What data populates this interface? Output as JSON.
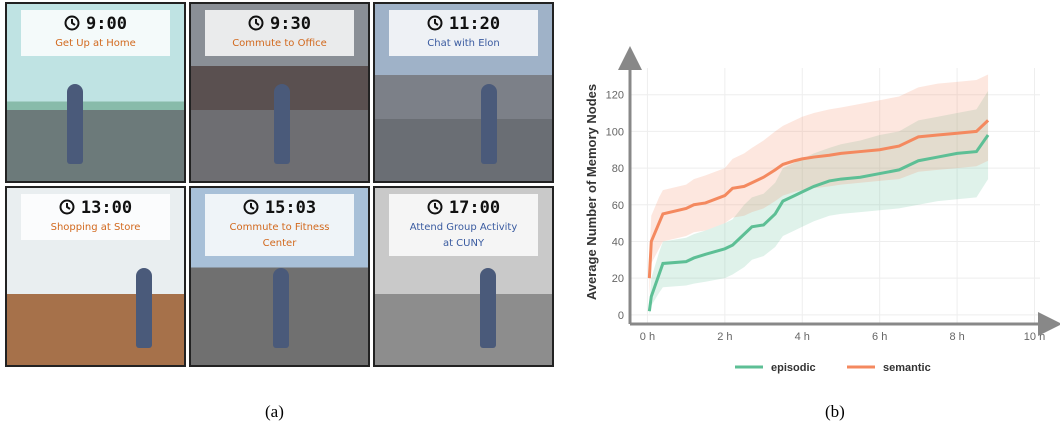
{
  "panels": [
    {
      "time": "9:00",
      "activity": [
        "Get Up at Home"
      ],
      "color": "#d2691e"
    },
    {
      "time": "9:30",
      "activity": [
        "Commute to Office"
      ],
      "color": "#d2691e"
    },
    {
      "time": "11:20",
      "activity": [
        "Chat with Elon"
      ],
      "color": "#3a5ba0"
    },
    {
      "time": "13:00",
      "activity": [
        "Shopping at Store"
      ],
      "color": "#d2691e"
    },
    {
      "time": "15:03",
      "activity": [
        "Commute to Fitness",
        "Center"
      ],
      "color": "#d2691e"
    },
    {
      "time": "17:00",
      "activity": [
        "Attend Group Activity",
        "at CUNY"
      ],
      "color": "#3a5ba0"
    }
  ],
  "figure_labels": [
    "(a)",
    "(b)"
  ],
  "chart_data": {
    "type": "line",
    "ylabel": "Average Number of Memory Nodes",
    "x": [
      0.05,
      0.1,
      0.3,
      0.4,
      1.0,
      1.2,
      1.5,
      2.0,
      2.2,
      2.5,
      2.7,
      3.0,
      3.3,
      3.5,
      3.8,
      4.0,
      4.3,
      4.7,
      5.0,
      5.5,
      6.0,
      6.5,
      7.0,
      7.5,
      8.0,
      8.5,
      8.8
    ],
    "series": [
      {
        "name": "episodic",
        "color": "#5dbf95",
        "values": [
          2,
          10,
          22,
          28,
          29,
          31,
          33,
          36,
          38,
          44,
          48,
          49,
          55,
          62,
          65,
          67,
          70,
          73,
          74,
          75,
          77,
          79,
          84,
          86,
          88,
          89,
          98
        ],
        "band_lower": [
          0,
          5,
          12,
          15,
          16,
          17,
          18,
          20,
          22,
          26,
          30,
          32,
          37,
          43,
          46,
          48,
          51,
          54,
          55,
          56,
          57,
          58,
          60,
          62,
          63,
          64,
          74
        ],
        "band_upper": [
          6,
          20,
          34,
          40,
          42,
          44,
          46,
          50,
          52,
          60,
          64,
          66,
          72,
          80,
          83,
          85,
          88,
          91,
          93,
          95,
          98,
          100,
          106,
          108,
          110,
          112,
          122
        ]
      },
      {
        "name": "semantic",
        "color": "#f4895f",
        "values": [
          20,
          40,
          50,
          55,
          58,
          60,
          61,
          65,
          69,
          70,
          72,
          75,
          79,
          82,
          84,
          85,
          86,
          87,
          88,
          89,
          90,
          92,
          97,
          98,
          99,
          100,
          106
        ],
        "band_lower": [
          10,
          28,
          36,
          40,
          43,
          45,
          46,
          50,
          53,
          54,
          56,
          58,
          62,
          65,
          67,
          68,
          69,
          70,
          71,
          72,
          73,
          74,
          78,
          79,
          80,
          81,
          84
        ],
        "band_upper": [
          32,
          54,
          64,
          68,
          71,
          74,
          76,
          80,
          85,
          88,
          91,
          95,
          100,
          103,
          106,
          108,
          110,
          112,
          113,
          115,
          117,
          119,
          124,
          126,
          127,
          128,
          131
        ]
      }
    ],
    "xlim": [
      -0.45,
      10.4
    ],
    "ylim": [
      -5,
      140
    ],
    "xticks": [
      {
        "value": 0,
        "label": "0 h"
      },
      {
        "value": 2,
        "label": "2 h"
      },
      {
        "value": 4,
        "label": "4 h"
      },
      {
        "value": 6,
        "label": "6 h"
      },
      {
        "value": 8,
        "label": "8 h"
      },
      {
        "value": 10,
        "label": "10 h"
      }
    ],
    "yticks": [
      0,
      20,
      40,
      60,
      80,
      100,
      120
    ],
    "grid": true,
    "legend": "bottom"
  }
}
